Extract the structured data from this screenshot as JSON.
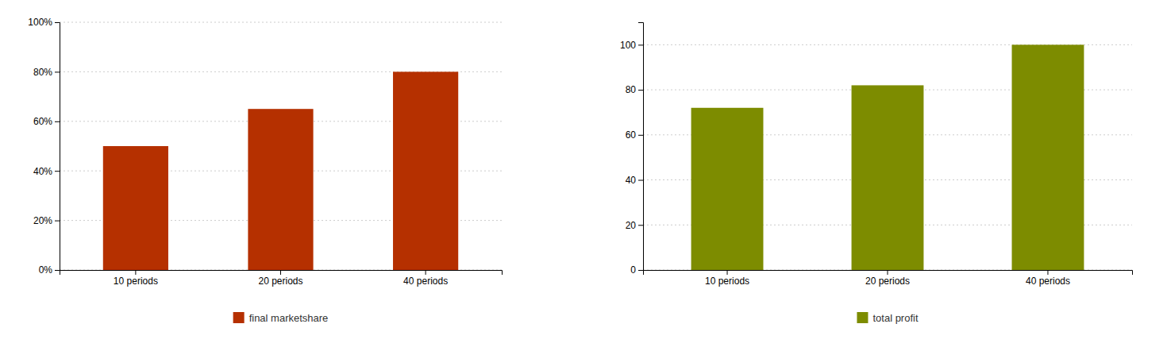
{
  "chart_data": [
    {
      "type": "bar",
      "categories": [
        "10 periods",
        "20 periods",
        "40 periods"
      ],
      "series": [
        {
          "name": "final marketshare",
          "color": "#b53000",
          "values": [
            0.5,
            0.65,
            0.8
          ]
        }
      ],
      "ylim": [
        0,
        1.0
      ],
      "yticks": [
        {
          "value": 0.0,
          "label": "0%"
        },
        {
          "value": 0.2,
          "label": "20%"
        },
        {
          "value": 0.4,
          "label": "40%"
        },
        {
          "value": 0.6,
          "label": "60%"
        },
        {
          "value": 0.8,
          "label": "80%"
        },
        {
          "value": 1.0,
          "label": "100%"
        }
      ],
      "grid": true,
      "legend": "bottom"
    },
    {
      "type": "bar",
      "categories": [
        "10 periods",
        "20 periods",
        "40 periods"
      ],
      "series": [
        {
          "name": "total profit",
          "color": "#7d8c00",
          "values": [
            72,
            82,
            100
          ]
        }
      ],
      "ylim": [
        0,
        110
      ],
      "yticks": [
        0,
        20,
        40,
        60,
        80,
        100
      ],
      "grid": true,
      "legend": "bottom"
    }
  ]
}
